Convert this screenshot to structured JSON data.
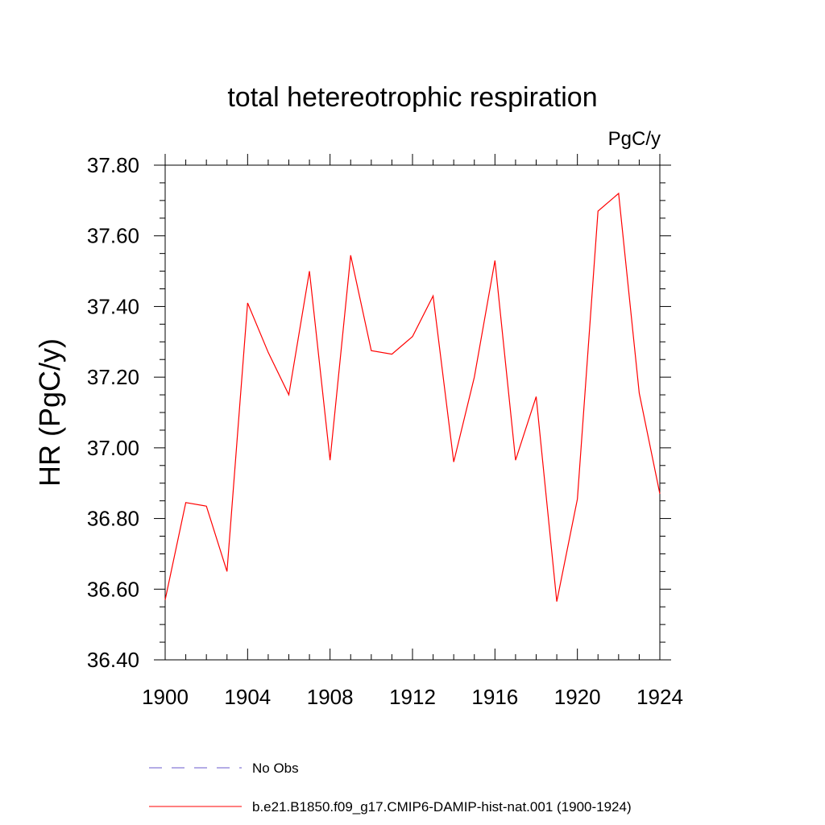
{
  "chart_data": {
    "type": "line",
    "title": "total hetereotrophic respiration",
    "units_label": "PgC/y",
    "ylabel": "HR  (PgC/y)",
    "xlabel": "",
    "xlim": [
      1900,
      1924
    ],
    "ylim": [
      36.4,
      37.8
    ],
    "x_ticks": [
      1900,
      1904,
      1908,
      1912,
      1916,
      1920,
      1924
    ],
    "x_tick_labels": [
      "1900",
      "1904",
      "1908",
      "1912",
      "1916",
      "1920",
      "1924"
    ],
    "y_ticks": [
      36.4,
      36.6,
      36.8,
      37.0,
      37.2,
      37.4,
      37.6,
      37.8
    ],
    "y_tick_labels": [
      "36.40",
      "36.60",
      "36.80",
      "37.00",
      "37.20",
      "37.40",
      "37.60",
      "37.80"
    ],
    "grid": false,
    "legend_position": "bottom",
    "series": [
      {
        "name": "No Obs",
        "color": "#6a5acd",
        "dash": "dashed",
        "x": [],
        "y": []
      },
      {
        "name": "b.e21.B1850.f09_g17.CMIP6-DAMIP-hist-nat.001 (1900-1924)",
        "color": "#ff0000",
        "dash": "solid",
        "x": [
          1900,
          1901,
          1902,
          1903,
          1904,
          1905,
          1906,
          1907,
          1908,
          1909,
          1910,
          1911,
          1912,
          1913,
          1914,
          1915,
          1916,
          1917,
          1918,
          1919,
          1920,
          1921,
          1922,
          1923,
          1924
        ],
        "y": [
          36.57,
          36.845,
          36.835,
          36.65,
          37.41,
          37.27,
          37.15,
          37.5,
          36.965,
          37.545,
          37.275,
          37.265,
          37.315,
          37.43,
          36.96,
          37.2,
          37.53,
          36.965,
          37.145,
          36.565,
          36.855,
          37.67,
          37.72,
          37.155,
          36.87
        ]
      }
    ]
  }
}
